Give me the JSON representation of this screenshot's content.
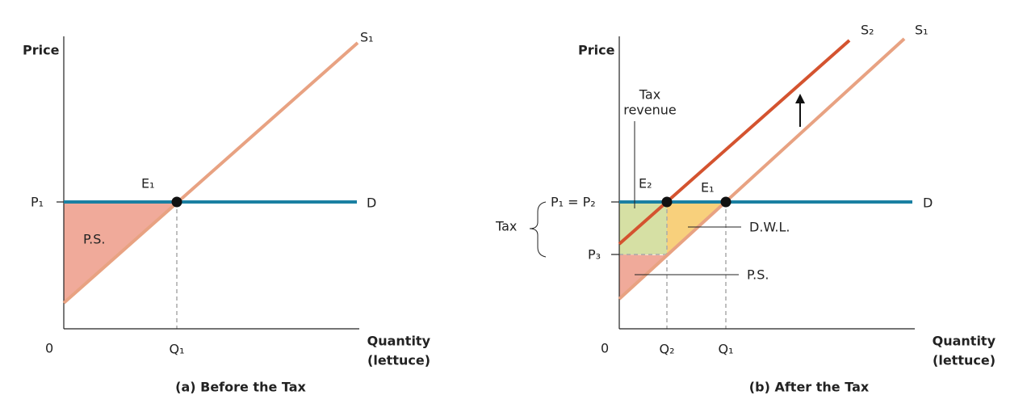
{
  "panel_a": {
    "y_axis_label": "Price",
    "x_axis_label": [
      "Quantity",
      "(lettuce)"
    ],
    "origin": "0",
    "price_label": "P₁",
    "quantity_label": "Q₁",
    "equilibrium_label": "E₁",
    "demand_label": "D",
    "supply_label": "S₁",
    "surplus_label": "P.S.",
    "caption": "(a) Before the Tax"
  },
  "panel_b": {
    "y_axis_label": "Price",
    "x_axis_label": [
      "Quantity",
      "(lettuce)"
    ],
    "origin": "0",
    "price_label": "P₁ = P₂",
    "price_label_low": "P₃",
    "quantity_labels": [
      "Q₂",
      "Q₁"
    ],
    "equilibrium_labels": [
      "E₂",
      "E₁"
    ],
    "demand_label": "D",
    "supply_labels": [
      "S₂",
      "S₁"
    ],
    "tax_label": "Tax",
    "tax_revenue_label": [
      "Tax",
      "revenue"
    ],
    "dwl_label": "D.W.L.",
    "surplus_label": "P.S.",
    "caption": "(b) After the Tax"
  }
}
